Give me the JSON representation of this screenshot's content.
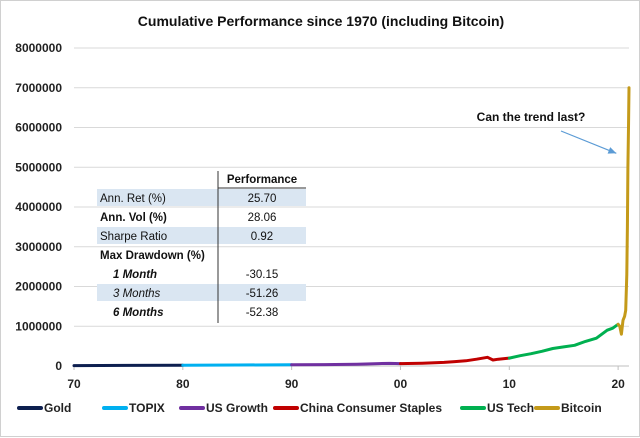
{
  "chart_data": {
    "type": "line",
    "title": "Cumulative Performance since 1970 (including Bitcoin)",
    "xlabel": "",
    "ylabel": "",
    "x_range": [
      1970,
      2021
    ],
    "ylim": [
      0,
      8000000
    ],
    "x_ticks": [
      {
        "x": 1970,
        "label": "70"
      },
      {
        "x": 1980,
        "label": "80"
      },
      {
        "x": 1990,
        "label": "90"
      },
      {
        "x": 2000,
        "label": "00"
      },
      {
        "x": 2010,
        "label": "10"
      },
      {
        "x": 2020,
        "label": "20"
      }
    ],
    "y_ticks": [
      0,
      1000000,
      2000000,
      3000000,
      4000000,
      5000000,
      6000000,
      7000000,
      8000000
    ],
    "y_tick_labels": [
      "0",
      "1000000",
      "2000000",
      "3000000",
      "4000000",
      "5000000",
      "6000000",
      "7000000",
      "8000000"
    ],
    "grid": "horizontal",
    "legend_position": "bottom",
    "series": [
      {
        "name": "Gold",
        "color": "#0d1f4f",
        "x": [
          1970,
          1975,
          1980
        ],
        "values": [
          10000,
          15000,
          20000
        ]
      },
      {
        "name": "TOPIX",
        "color": "#00b0f0",
        "x": [
          1980,
          1985,
          1990
        ],
        "values": [
          20000,
          25000,
          30000
        ]
      },
      {
        "name": "US Growth",
        "color": "#7030a0",
        "x": [
          1990,
          1993,
          1996,
          1998,
          1999,
          2000
        ],
        "values": [
          30000,
          35000,
          45000,
          60000,
          65000,
          60000
        ]
      },
      {
        "name": "China Consumer Staples",
        "color": "#c00000",
        "x": [
          2000,
          2002,
          2004,
          2005,
          2006,
          2007,
          2008,
          2008.5,
          2009,
          2010
        ],
        "values": [
          60000,
          70000,
          90000,
          110000,
          130000,
          170000,
          220000,
          150000,
          170000,
          200000
        ]
      },
      {
        "name": "US Tech",
        "color": "#00b050",
        "x": [
          2010,
          2011,
          2012,
          2013,
          2014,
          2015,
          2016,
          2017,
          2018,
          2019,
          2019.5,
          2020
        ],
        "values": [
          200000,
          260000,
          310000,
          370000,
          440000,
          480000,
          520000,
          620000,
          700000,
          900000,
          950000,
          1050000
        ]
      },
      {
        "name": "Bitcoin",
        "color": "#c49a1a",
        "x": [
          2020,
          2020.15,
          2020.3,
          2020.45,
          2020.6,
          2020.7,
          2020.8,
          2020.85,
          2020.9,
          2020.95,
          2021
        ],
        "values": [
          1050000,
          1000000,
          800000,
          1150000,
          1250000,
          1400000,
          2300000,
          3500000,
          5000000,
          6000000,
          7000000
        ]
      }
    ],
    "annotations": [
      {
        "text": "Can the trend last?",
        "arrow_to": {
          "x": 2020.2,
          "y": 5350000
        }
      }
    ],
    "table": {
      "header": "Performance",
      "rows": [
        {
          "label": "Ann. Ret (%)",
          "value": "25.70",
          "style": "normal",
          "shaded": true
        },
        {
          "label": "Ann. Vol (%)",
          "value": "28.06",
          "style": "bold",
          "shaded": false
        },
        {
          "label": "Sharpe Ratio",
          "value": "0.92",
          "style": "normal",
          "shaded": true
        },
        {
          "label": "Max Drawdown (%)",
          "value": "",
          "style": "bold",
          "shaded": false
        },
        {
          "label": "1 Month",
          "value": "-30.15",
          "style": "bold-italic",
          "shaded": false
        },
        {
          "label": "3 Months",
          "value": "-51.26",
          "style": "italic",
          "shaded": true
        },
        {
          "label": "6 Months",
          "value": "-52.38",
          "style": "bold-italic",
          "shaded": false
        }
      ]
    }
  }
}
